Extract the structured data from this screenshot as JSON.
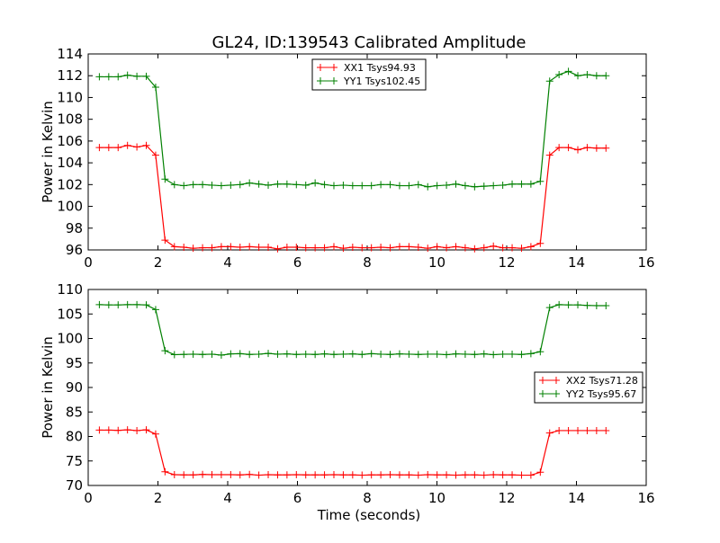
{
  "title": "GL24, ID:139543 Calibrated Amplitude",
  "chart_data": [
    {
      "type": "line",
      "title": "GL24, ID:139543 Calibrated Amplitude",
      "xlabel": "",
      "ylabel": "Power in Kelvin",
      "xlim": [
        0,
        16
      ],
      "ylim": [
        96,
        114
      ],
      "xticks": [
        "0",
        "2",
        "4",
        "6",
        "8",
        "10",
        "12",
        "14",
        "16"
      ],
      "yticks": [
        "96",
        "98",
        "100",
        "102",
        "104",
        "106",
        "108",
        "110",
        "112",
        "114"
      ],
      "legend_position": "top-center",
      "x_start": 0.32,
      "x_step": 0.269,
      "series": [
        {
          "name": "XX1 Tsys94.93",
          "color": "#ff0000",
          "values": [
            105.4,
            105.4,
            105.4,
            105.6,
            105.45,
            105.6,
            104.7,
            96.9,
            96.3,
            96.25,
            96.15,
            96.2,
            96.2,
            96.3,
            96.3,
            96.25,
            96.3,
            96.25,
            96.25,
            96.1,
            96.25,
            96.25,
            96.2,
            96.2,
            96.2,
            96.3,
            96.15,
            96.25,
            96.2,
            96.2,
            96.25,
            96.2,
            96.3,
            96.3,
            96.25,
            96.15,
            96.3,
            96.2,
            96.3,
            96.2,
            96.1,
            96.2,
            96.35,
            96.2,
            96.2,
            96.15,
            96.3,
            96.6,
            104.7,
            105.4,
            105.4,
            105.2,
            105.4,
            105.35,
            105.35
          ]
        },
        {
          "name": "YY1 Tsys102.45",
          "color": "#008000",
          "values": [
            111.9,
            111.9,
            111.9,
            112.05,
            111.95,
            111.95,
            110.95,
            102.5,
            102.0,
            101.9,
            102.0,
            102.0,
            101.95,
            101.9,
            101.95,
            102.0,
            102.15,
            102.05,
            101.95,
            102.05,
            102.05,
            102.0,
            101.95,
            102.15,
            102.0,
            101.9,
            101.95,
            101.9,
            101.9,
            101.9,
            102.0,
            102.0,
            101.9,
            101.9,
            102.0,
            101.8,
            101.9,
            101.95,
            102.05,
            101.9,
            101.8,
            101.85,
            101.9,
            101.95,
            102.05,
            102.05,
            102.05,
            102.3,
            111.5,
            112.1,
            112.4,
            112.0,
            112.1,
            112.0,
            112.0
          ]
        }
      ]
    },
    {
      "type": "line",
      "xlabel": "Time (seconds)",
      "ylabel": "Power in Kelvin",
      "xlim": [
        0,
        16
      ],
      "ylim": [
        70,
        110
      ],
      "xticks": [
        "0",
        "2",
        "4",
        "6",
        "8",
        "10",
        "12",
        "14",
        "16"
      ],
      "yticks": [
        "70",
        "75",
        "80",
        "85",
        "90",
        "95",
        "100",
        "105",
        "110"
      ],
      "legend_position": "center-right",
      "x_start": 0.32,
      "x_step": 0.269,
      "series": [
        {
          "name": "XX2 Tsys71.28",
          "color": "#ff0000",
          "values": [
            81.3,
            81.3,
            81.25,
            81.35,
            81.2,
            81.35,
            80.5,
            72.8,
            72.2,
            72.15,
            72.15,
            72.25,
            72.2,
            72.2,
            72.2,
            72.15,
            72.25,
            72.1,
            72.2,
            72.15,
            72.15,
            72.2,
            72.15,
            72.15,
            72.15,
            72.2,
            72.15,
            72.15,
            72.1,
            72.15,
            72.15,
            72.2,
            72.15,
            72.15,
            72.1,
            72.2,
            72.15,
            72.15,
            72.1,
            72.15,
            72.15,
            72.1,
            72.2,
            72.15,
            72.15,
            72.1,
            72.1,
            72.7,
            80.7,
            81.2,
            81.2,
            81.2,
            81.2,
            81.2,
            81.2
          ]
        },
        {
          "name": "YY2 Tsys95.67",
          "color": "#008000",
          "values": [
            106.9,
            106.85,
            106.85,
            106.9,
            106.9,
            106.85,
            105.9,
            97.5,
            96.7,
            96.75,
            96.8,
            96.75,
            96.8,
            96.6,
            96.85,
            96.9,
            96.75,
            96.8,
            96.95,
            96.8,
            96.85,
            96.75,
            96.8,
            96.75,
            96.85,
            96.75,
            96.8,
            96.85,
            96.75,
            96.9,
            96.8,
            96.75,
            96.85,
            96.8,
            96.75,
            96.8,
            96.8,
            96.7,
            96.85,
            96.8,
            96.75,
            96.85,
            96.7,
            96.8,
            96.8,
            96.75,
            96.9,
            97.3,
            106.3,
            106.9,
            106.85,
            106.85,
            106.75,
            106.7,
            106.7
          ]
        }
      ]
    }
  ]
}
